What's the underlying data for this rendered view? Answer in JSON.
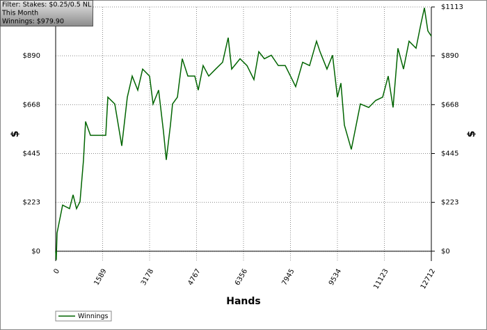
{
  "chart_data": {
    "type": "line",
    "annotations": [
      "Filter: Stakes: $0.25/0.5 NL",
      "This Month",
      "Winnings: $979.90"
    ],
    "xlabel": "Hands",
    "ylabel": "$",
    "y2label": "$",
    "x": [
      0,
      20,
      47,
      235,
      470,
      590,
      706,
      824,
      942,
      1012,
      1177,
      1412,
      1695,
      1766,
      2001,
      2237,
      2425,
      2590,
      2778,
      2943,
      3178,
      3296,
      3484,
      3649,
      3743,
      3884,
      3955,
      4120,
      4284,
      4473,
      4708,
      4825,
      4990,
      5179,
      5414,
      5649,
      5838,
      5956,
      6239,
      6474,
      6709,
      6874,
      7062,
      7297,
      7533,
      7768,
      8004,
      8121,
      8357,
      8592,
      8827,
      8945,
      9180,
      9369,
      9534,
      9652,
      9769,
      10004,
      10169,
      10310,
      10593,
      10829,
      11064,
      11252,
      11417,
      11582,
      11770,
      11958,
      12194,
      12359,
      12477,
      12594,
      12712
    ],
    "series": [
      {
        "name": "Winnings",
        "color": "#006400",
        "values": [
          0,
          -40,
          83,
          210,
          194,
          257,
          194,
          226,
          416,
          591,
          528,
          528,
          528,
          702,
          671,
          480,
          702,
          798,
          734,
          830,
          798,
          671,
          734,
          544,
          416,
          575,
          671,
          702,
          877,
          798,
          798,
          734,
          846,
          798,
          830,
          861,
          973,
          830,
          877,
          846,
          782,
          909,
          877,
          893,
          846,
          846,
          782,
          750,
          861,
          846,
          957,
          909,
          830,
          893,
          702,
          766,
          575,
          464,
          575,
          671,
          655,
          687,
          702,
          798,
          655,
          925,
          830,
          957,
          925,
          1036,
          1109,
          1004,
          979.9
        ]
      }
    ],
    "xlim": [
      0,
      12712
    ],
    "xticks": [
      0,
      1589,
      3178,
      4767,
      6356,
      7945,
      9534,
      11123,
      12712
    ],
    "ylim": [
      -45,
      1113
    ],
    "yticks": [
      {
        "value": 0,
        "label": "$0"
      },
      {
        "value": 222.6,
        "label": "$223"
      },
      {
        "value": 445.2,
        "label": "$445"
      },
      {
        "value": 667.8,
        "label": "$668"
      },
      {
        "value": 890.4,
        "label": "$890"
      },
      {
        "value": 1113,
        "label": "$1113"
      }
    ],
    "y2lim": [
      -45,
      1113
    ],
    "y2ticks": [
      {
        "value": 0,
        "label": "$0"
      },
      {
        "value": 222.6,
        "label": "$223"
      },
      {
        "value": 445.2,
        "label": "$445"
      },
      {
        "value": 667.8,
        "label": "$668"
      },
      {
        "value": 890.4,
        "label": "$890"
      },
      {
        "value": 1113,
        "label": "$1113"
      }
    ],
    "grid": true,
    "legend": "bottom-left"
  }
}
